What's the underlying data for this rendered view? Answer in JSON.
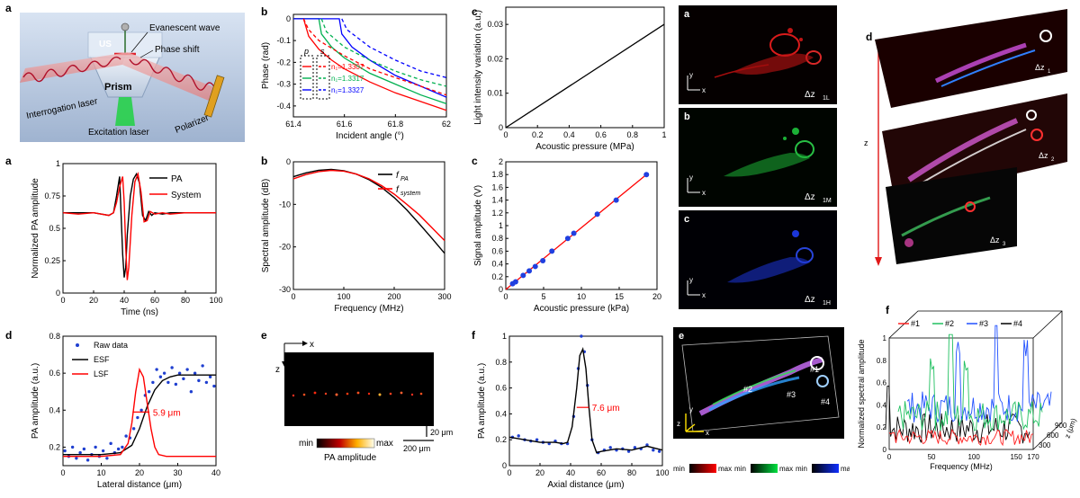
{
  "panel_labels": {
    "schematic": "a",
    "phase": "b",
    "linear": "c",
    "pa_time": "a",
    "pa_spec": "b",
    "sig_amp": "c",
    "lateral": "d",
    "pa_image": "e",
    "axial": "f",
    "ch_a": "a",
    "ch_b": "b",
    "ch_c": "c",
    "ch_e": "e",
    "stack": "d",
    "spectrum": "f"
  },
  "schematic": {
    "us": "US",
    "evanescent": "Evanescent wave",
    "phase_shift": "Phase shift",
    "prism": "Prism",
    "interrogation": "Interrogation laser",
    "excitation": "Excitation laser",
    "polarizer": "Polarizer"
  },
  "pa_image": {
    "colorbar_min": "min",
    "colorbar_max": "max",
    "colorbar_label": "PA amplitude",
    "scale_z": "20 μm",
    "scale_x": "200 μm",
    "axis_x": "x",
    "axis_z": "z"
  },
  "channels": {
    "a": "Δz",
    "b": "Δz",
    "c": "Δz",
    "sub_a": "1L",
    "sub_b": "1M",
    "sub_c": "1H",
    "cb_min": "min",
    "cb_max": "max",
    "axis_x": "x",
    "axis_y": "y",
    "axis_z": "z",
    "markers": [
      "#1",
      "#2",
      "#3",
      "#4"
    ]
  },
  "stack": {
    "axis_x": "x",
    "axis_y": "y",
    "axis_z": "z",
    "layers": [
      "Δz",
      "Δz",
      "Δz"
    ],
    "layer_subs": [
      "1",
      "2",
      "3"
    ]
  },
  "chart_data": [
    {
      "id": "phase",
      "type": "line",
      "xlabel": "Incident angle (°)",
      "ylabel": "Phase (rad)",
      "xlim": [
        61.4,
        62
      ],
      "ylim": [
        -0.45,
        0.02
      ],
      "xticks": [
        "61.4",
        "61.6",
        "61.8",
        "62"
      ],
      "yticks": [
        "0",
        "-0.1",
        "-0.2",
        "-0.3",
        "-0.4"
      ],
      "legend_headers": [
        "p",
        "s"
      ],
      "legend": [
        "n₁=1.3307",
        "n₁=1.3317",
        "n₁=1.3327"
      ],
      "series": [
        {
          "name": "n₁=1.3307",
          "pol": "p",
          "color": "#ff0000",
          "x": [
            61.4,
            61.44,
            61.46,
            61.5,
            61.55,
            61.6,
            61.7,
            61.8,
            61.9,
            62.0
          ],
          "y": [
            0,
            0,
            -0.08,
            -0.14,
            -0.19,
            -0.23,
            -0.29,
            -0.34,
            -0.38,
            -0.42
          ]
        },
        {
          "name": "n₁=1.3317",
          "pol": "p",
          "color": "#00b050",
          "x": [
            61.4,
            61.5,
            61.51,
            61.55,
            61.6,
            61.7,
            61.8,
            61.9,
            62.0
          ],
          "y": [
            0,
            0,
            -0.07,
            -0.13,
            -0.18,
            -0.25,
            -0.3,
            -0.35,
            -0.39
          ]
        },
        {
          "name": "n₁=1.3327",
          "pol": "p",
          "color": "#0000ff",
          "x": [
            61.4,
            61.58,
            61.59,
            61.63,
            61.7,
            61.8,
            61.9,
            62.0
          ],
          "y": [
            0,
            0,
            -0.07,
            -0.13,
            -0.19,
            -0.26,
            -0.31,
            -0.36
          ]
        },
        {
          "name": "n₁=1.3307",
          "pol": "s",
          "color": "#ff0000",
          "dash": true,
          "x": [
            61.44,
            61.46,
            61.5,
            61.6,
            61.7,
            61.8,
            61.9,
            62.0
          ],
          "y": [
            0,
            -0.05,
            -0.1,
            -0.17,
            -0.23,
            -0.27,
            -0.31,
            -0.35
          ]
        },
        {
          "name": "n₁=1.3317",
          "pol": "s",
          "color": "#00b050",
          "dash": true,
          "x": [
            61.51,
            61.53,
            61.6,
            61.7,
            61.8,
            61.9,
            62.0
          ],
          "y": [
            0,
            -0.06,
            -0.13,
            -0.19,
            -0.24,
            -0.28,
            -0.31
          ]
        },
        {
          "name": "n₁=1.3327",
          "pol": "s",
          "color": "#0000ff",
          "dash": true,
          "x": [
            61.59,
            61.61,
            61.7,
            61.8,
            61.9,
            62.0
          ],
          "y": [
            0,
            -0.05,
            -0.13,
            -0.19,
            -0.24,
            -0.27
          ]
        }
      ]
    },
    {
      "id": "linear",
      "type": "line",
      "xlabel": "Acoustic pressure (MPa)",
      "ylabel": "Light intensity variation (a.u.)",
      "xlim": [
        0,
        1
      ],
      "ylim": [
        0,
        0.035
      ],
      "xticks": [
        "0",
        "0.2",
        "0.4",
        "0.6",
        "0.8",
        "1"
      ],
      "yticks": [
        "0",
        "0.01",
        "0.02",
        "0.03"
      ],
      "series": [
        {
          "color": "#000000",
          "x": [
            0,
            1
          ],
          "y": [
            0,
            0.03
          ]
        }
      ]
    },
    {
      "id": "pa_time",
      "type": "line",
      "xlabel": "Time (ns)",
      "ylabel": "Normalized PA amplitude",
      "xlim": [
        0,
        100
      ],
      "ylim": [
        0,
        1
      ],
      "xticks": [
        "0",
        "20",
        "40",
        "60",
        "80",
        "100"
      ],
      "yticks": [
        "0",
        "0.25",
        "0.5",
        "0.75",
        "1"
      ],
      "legend": [
        "PA",
        "System"
      ],
      "series": [
        {
          "name": "PA",
          "color": "#000000",
          "x": [
            0,
            10,
            20,
            30,
            33,
            35,
            37,
            38,
            39,
            40,
            41,
            42,
            44,
            46,
            48,
            50,
            52,
            54,
            56,
            58,
            60,
            65,
            70,
            80,
            90,
            100
          ],
          "y": [
            0.62,
            0.62,
            0.62,
            0.6,
            0.62,
            0.75,
            0.9,
            0.6,
            0.3,
            0.12,
            0.2,
            0.45,
            0.75,
            0.88,
            0.92,
            0.85,
            0.6,
            0.56,
            0.63,
            0.6,
            0.62,
            0.61,
            0.62,
            0.62,
            0.62,
            0.62
          ]
        },
        {
          "name": "System",
          "color": "#ff0000",
          "x": [
            0,
            10,
            20,
            30,
            33,
            35,
            37,
            39,
            40,
            41,
            42,
            43,
            45,
            47,
            49,
            51,
            53,
            55,
            57,
            60,
            65,
            70,
            80,
            90,
            100
          ],
          "y": [
            0.62,
            0.61,
            0.62,
            0.6,
            0.62,
            0.7,
            0.82,
            0.9,
            0.7,
            0.35,
            0.1,
            0.2,
            0.6,
            0.86,
            0.92,
            0.78,
            0.55,
            0.56,
            0.63,
            0.61,
            0.62,
            0.61,
            0.62,
            0.62,
            0.62
          ]
        }
      ]
    },
    {
      "id": "pa_spec",
      "type": "line",
      "xlabel": "Frequency (MHz)",
      "ylabel": "Spectral amplitude (dB)",
      "xlim": [
        0,
        300
      ],
      "ylim": [
        -30,
        0
      ],
      "xticks": [
        "0",
        "100",
        "200",
        "300"
      ],
      "yticks": [
        "0",
        "-10",
        "-20",
        "-30"
      ],
      "legend": [
        "f",
        "f"
      ],
      "legend_subs": [
        "PA",
        "system"
      ],
      "series": [
        {
          "name": "PA",
          "color": "#000000",
          "x": [
            0,
            25,
            50,
            75,
            100,
            125,
            150,
            175,
            200,
            225,
            250,
            275,
            300
          ],
          "y": [
            -3.5,
            -2.6,
            -2.0,
            -1.8,
            -2.1,
            -2.9,
            -4.2,
            -6.0,
            -8.4,
            -11.3,
            -14.6,
            -18.0,
            -21.5
          ]
        },
        {
          "name": "system",
          "color": "#ff0000",
          "x": [
            0,
            25,
            50,
            75,
            100,
            125,
            150,
            175,
            200,
            225,
            250,
            275,
            300
          ],
          "y": [
            -4.0,
            -3.0,
            -2.3,
            -2.0,
            -2.2,
            -2.9,
            -4.0,
            -5.6,
            -7.6,
            -10.0,
            -12.5,
            -15.5,
            -18.5
          ]
        }
      ]
    },
    {
      "id": "sig_amp",
      "type": "scatter",
      "xlabel": "Acoustic pressure (kPa)",
      "ylabel": "Signal amplitude (V)",
      "xlim": [
        0,
        20
      ],
      "ylim": [
        0,
        2
      ],
      "xticks": [
        "0",
        "5",
        "10",
        "15",
        "20"
      ],
      "yticks": [
        "0",
        "0.2",
        "0.4",
        "0.6",
        "0.8",
        "1",
        "1.2",
        "1.4",
        "1.6",
        "1.8",
        "2"
      ],
      "series": [
        {
          "name": "points",
          "color": "#2040e0",
          "x": [
            0.9,
            1.3,
            2.3,
            3.1,
            3.9,
            4.9,
            6.1,
            8.2,
            9.0,
            12.1,
            14.6,
            18.6
          ],
          "y": [
            0.09,
            0.12,
            0.22,
            0.29,
            0.36,
            0.45,
            0.6,
            0.8,
            0.88,
            1.18,
            1.4,
            1.8
          ]
        },
        {
          "name": "fit",
          "color": "#ff0000",
          "x": [
            0,
            18.6
          ],
          "y": [
            0,
            1.8
          ]
        }
      ]
    },
    {
      "id": "lateral",
      "type": "line",
      "xlabel": "Lateral distance (μm)",
      "ylabel": "PA amplitude (a.u.)",
      "xlim": [
        0,
        40
      ],
      "ylim": [
        0.1,
        0.8
      ],
      "xticks": [
        "0",
        "10",
        "20",
        "30",
        "40"
      ],
      "yticks": [
        "0.2",
        "0.4",
        "0.6",
        "0.8"
      ],
      "legend": [
        "Raw data",
        "ESF",
        "LSF"
      ],
      "annotation": "5.9 μm",
      "series": [
        {
          "name": "ESF",
          "color": "#000000",
          "x": [
            0,
            5,
            10,
            15,
            18,
            20,
            22,
            24,
            26,
            28,
            30,
            35,
            40
          ],
          "y": [
            0.16,
            0.16,
            0.16,
            0.17,
            0.21,
            0.3,
            0.42,
            0.51,
            0.56,
            0.58,
            0.59,
            0.59,
            0.59
          ]
        },
        {
          "name": "LSF",
          "color": "#ff0000",
          "x": [
            0,
            10,
            15,
            17,
            18,
            19,
            20,
            21,
            22,
            23,
            24,
            25,
            27,
            30,
            40
          ],
          "y": [
            0.15,
            0.15,
            0.16,
            0.22,
            0.33,
            0.5,
            0.62,
            0.58,
            0.44,
            0.3,
            0.2,
            0.16,
            0.15,
            0.15,
            0.15
          ]
        },
        {
          "name": "Raw data",
          "color": "#1f3fd0",
          "x": [
            0.5,
            1.5,
            2.5,
            3.5,
            4.5,
            5.5,
            6.5,
            7.5,
            8.5,
            9.5,
            10.5,
            11.5,
            12.5,
            13.5,
            14.5,
            15.5,
            16.5,
            17.5,
            18.5,
            19.5,
            20.5,
            21.5,
            22.5,
            23.5,
            24.5,
            25.5,
            26.5,
            27.5,
            28.5,
            29.5,
            30.5,
            31.5,
            32.5,
            33.5,
            34.5,
            35.5,
            36.5,
            37.5,
            38.5,
            39.5
          ],
          "y": [
            0.18,
            0.15,
            0.2,
            0.14,
            0.17,
            0.19,
            0.13,
            0.16,
            0.2,
            0.15,
            0.18,
            0.14,
            0.22,
            0.17,
            0.19,
            0.2,
            0.26,
            0.25,
            0.3,
            0.36,
            0.4,
            0.48,
            0.5,
            0.55,
            0.62,
            0.58,
            0.6,
            0.55,
            0.63,
            0.54,
            0.6,
            0.57,
            0.62,
            0.5,
            0.6,
            0.56,
            0.64,
            0.55,
            0.58,
            0.53
          ]
        }
      ]
    },
    {
      "id": "axial",
      "type": "line",
      "xlabel": "Axial distance (μm)",
      "ylabel": "PA amplitude (a.u.)",
      "xlim": [
        0,
        100
      ],
      "ylim": [
        0,
        1
      ],
      "xticks": [
        "0",
        "20",
        "40",
        "60",
        "80",
        "100"
      ],
      "yticks": [
        "0",
        "0.2",
        "0.4",
        "0.6",
        "0.8",
        "1"
      ],
      "annotation": "7.6 μm",
      "series": [
        {
          "name": "fit",
          "color": "#000000",
          "x": [
            0,
            10,
            20,
            30,
            35,
            38,
            41,
            44,
            46,
            48,
            50,
            52,
            54,
            57,
            60,
            70,
            80,
            90,
            100
          ],
          "y": [
            0.22,
            0.2,
            0.18,
            0.18,
            0.17,
            0.18,
            0.3,
            0.6,
            0.85,
            0.9,
            0.75,
            0.45,
            0.2,
            0.1,
            0.11,
            0.13,
            0.12,
            0.15,
            0.12
          ]
        },
        {
          "name": "raw",
          "color": "#1f3fd0",
          "x": [
            2,
            6,
            10,
            14,
            18,
            22,
            26,
            30,
            34,
            38,
            42,
            45,
            47,
            49,
            51,
            54,
            58,
            62,
            66,
            70,
            74,
            78,
            82,
            86,
            90,
            94,
            98
          ],
          "y": [
            0.22,
            0.23,
            0.2,
            0.19,
            0.2,
            0.18,
            0.17,
            0.19,
            0.17,
            0.17,
            0.38,
            0.75,
            1.0,
            0.88,
            0.62,
            0.2,
            0.1,
            0.12,
            0.14,
            0.12,
            0.13,
            0.11,
            0.14,
            0.13,
            0.16,
            0.12,
            0.11
          ]
        }
      ]
    },
    {
      "id": "spectrum",
      "type": "line",
      "xlabel": "Frequency (MHz)",
      "ylabel": "Normalized spectral amplitude",
      "zlabel": "z (μm)",
      "xlim": [
        0,
        170
      ],
      "ylim": [
        0,
        1
      ],
      "xticks": [
        "0",
        "50",
        "100",
        "150",
        "170"
      ],
      "yticks": [
        "0",
        "0.2",
        "0.4",
        "0.6",
        "0.8",
        "1"
      ],
      "zticks": [
        "300",
        "600",
        "900"
      ],
      "legend": [
        "#1",
        "#2",
        "#3",
        "#4"
      ],
      "series": [
        {
          "name": "#1",
          "color": "#ff2020"
        },
        {
          "name": "#2",
          "color": "#20c060"
        },
        {
          "name": "#3",
          "color": "#2050ff"
        },
        {
          "name": "#4",
          "color": "#000000"
        }
      ]
    }
  ]
}
